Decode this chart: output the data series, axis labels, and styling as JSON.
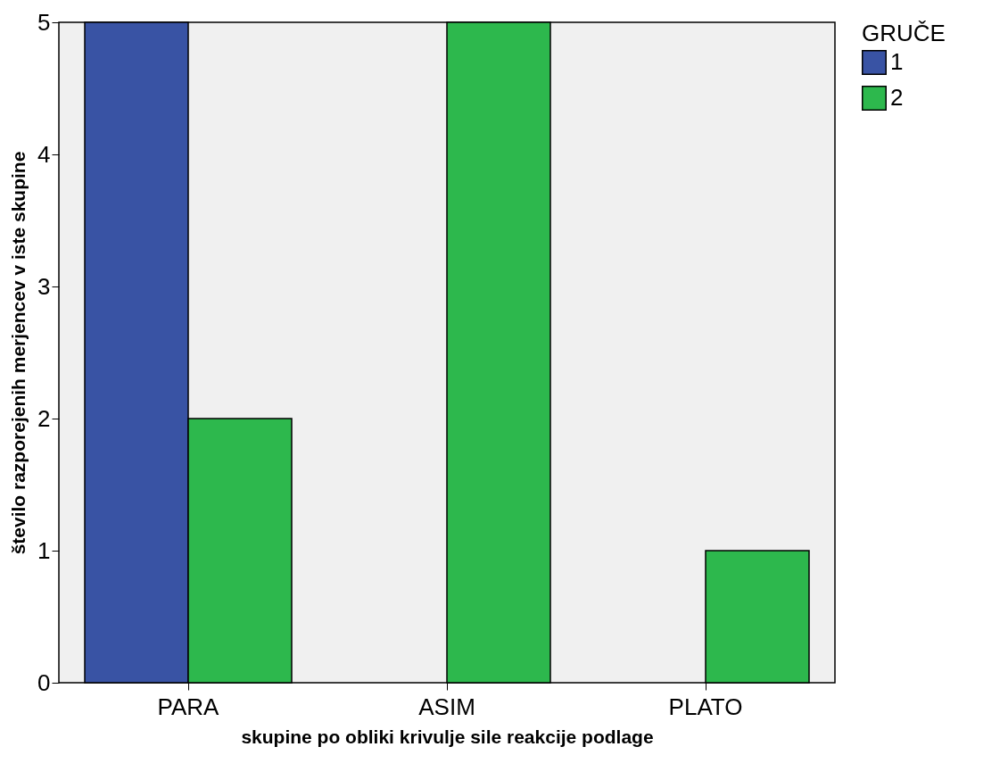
{
  "chart_data": {
    "type": "bar",
    "xlabel": "skupine po obliki krivulje sile reakcije podlage",
    "ylabel": "število razporejenih merjencev v iste skupine",
    "legend_title": "GRUČE",
    "categories": [
      "PARA",
      "ASIM",
      "PLATO"
    ],
    "series": [
      {
        "name": "1",
        "color": "#3953a4",
        "values": [
          5,
          null,
          null
        ]
      },
      {
        "name": "2",
        "color": "#2db84d",
        "values": [
          2,
          5,
          1
        ]
      }
    ],
    "ylim": [
      0,
      5
    ],
    "yticks": [
      0,
      1,
      2,
      3,
      4,
      5
    ],
    "grid": false,
    "legend": "top right"
  }
}
